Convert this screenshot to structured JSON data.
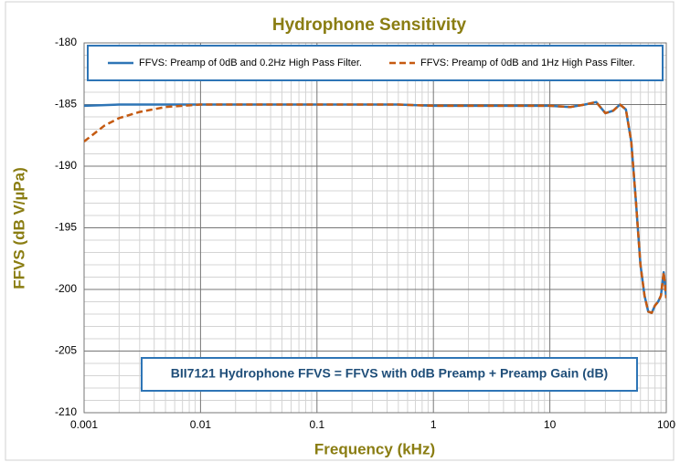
{
  "chart_data": {
    "type": "line",
    "title": "Hydrophone Sensitivity",
    "xlabel": "Frequency (kHz)",
    "ylabel": "FFVS (dB V/µPa)",
    "annotation": "BII7121 Hydrophone FFVS = FFVS with 0dB Preamp + Preamp Gain (dB)",
    "xscale": "log",
    "grid": true,
    "legend": "top",
    "xlim": [
      0.001,
      100
    ],
    "xticks": [
      0.001,
      0.01,
      0.1,
      1,
      10,
      100
    ],
    "ylim": [
      -210,
      -180
    ],
    "yticks": [
      -210,
      -205,
      -200,
      -195,
      -190,
      -185,
      -180
    ],
    "x": [
      0.001,
      0.0015,
      0.002,
      0.003,
      0.005,
      0.01,
      0.1,
      0.5,
      1,
      3,
      10,
      15,
      20,
      25,
      30,
      35,
      40,
      45,
      50,
      55,
      60,
      65,
      70,
      75,
      80,
      85,
      90,
      95,
      100
    ],
    "series": [
      {
        "name": "FFVS: Preamp of 0dB and 0.2Hz High Pass Filter.",
        "color": "#2e75b6",
        "dash": "solid",
        "values": [
          -185.1,
          -185.05,
          -185,
          -185,
          -185,
          -185,
          -185,
          -185,
          -185.1,
          -185.1,
          -185.1,
          -185.2,
          -185,
          -184.8,
          -185.7,
          -185.5,
          -185,
          -185.4,
          -188,
          -193,
          -198,
          -200.5,
          -201.8,
          -201.9,
          -201.3,
          -201,
          -200.5,
          -198.6,
          -200.7
        ]
      },
      {
        "name": "FFVS: Preamp of 0dB and 1Hz High Pass Filter.",
        "color": "#c55a11",
        "dash": "dashed",
        "values": [
          -188,
          -186.7,
          -186.1,
          -185.6,
          -185.2,
          -185,
          -185,
          -185,
          -185.1,
          -185.1,
          -185.1,
          -185.2,
          -185,
          -184.8,
          -185.7,
          -185.5,
          -185,
          -185.4,
          -188,
          -193,
          -198,
          -200.5,
          -201.8,
          -201.9,
          -201.3,
          -201,
          -200.5,
          -198.6,
          -200.7
        ]
      }
    ]
  }
}
